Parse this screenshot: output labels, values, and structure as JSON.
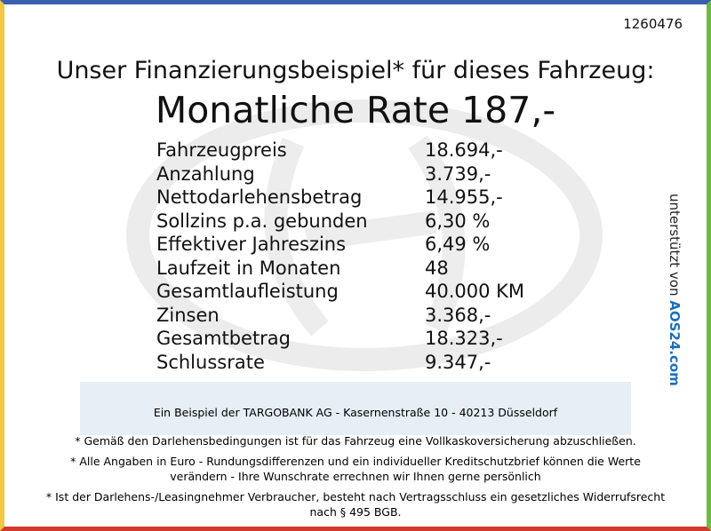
{
  "id": "1260476",
  "heading": "Unser Finanzierungsbeispiel* für dieses Fahrzeug:",
  "rate": "Monatliche Rate 187,-",
  "rows": [
    {
      "label": "Fahrzeugpreis",
      "value": "18.694,-"
    },
    {
      "label": "Anzahlung",
      "value": "3.739,-"
    },
    {
      "label": "Nettodarlehensbetrag",
      "value": "14.955,-"
    },
    {
      "label": "Sollzins p.a. gebunden",
      "value": "6,30 %"
    },
    {
      "label": "Effektiver Jahreszins",
      "value": "6,49 %"
    },
    {
      "label": "Laufzeit in Monaten",
      "value": "48"
    },
    {
      "label": "Gesamtlaufleistung",
      "value": "40.000 KM"
    },
    {
      "label": "Zinsen",
      "value": "3.368,-"
    },
    {
      "label": "Gesamtbetrag",
      "value": "18.323,-"
    },
    {
      "label": "Schlussrate",
      "value": "9.347,-"
    }
  ],
  "bank": "Ein Beispiel der TARGOBANK AG - Kasernenstraße 10 - 40213 Düsseldorf",
  "notes": [
    "* Gemäß den Darlehensbedingungen ist für das Fahrzeug eine Vollkaskoversicherung abzuschließen.",
    "* Alle Angaben in Euro - Rundungsdifferenzen und ein individueller Kreditschutzbrief können die Werte verändern - Ihre Wunschrate errechnen wir Ihnen gerne persönlich",
    "* Ist der Darlehens-/Leasingnehmer Verbraucher, besteht nach Vertragsschluss ein gesetzliches Widerrufsrecht nach § 495 BGB."
  ],
  "side": {
    "prefix": "unterstützt von",
    "brand": "AOS24.com"
  }
}
